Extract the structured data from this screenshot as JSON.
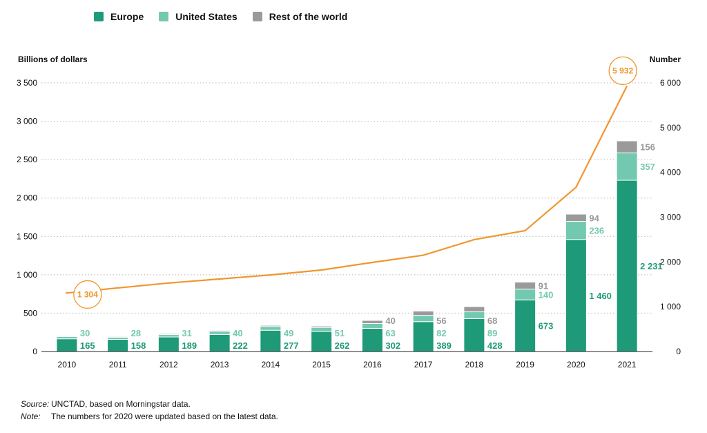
{
  "legend": [
    {
      "label": "Europe",
      "color": "#1e9a78"
    },
    {
      "label": "United States",
      "color": "#72c9b0"
    },
    {
      "label": "Rest of the world",
      "color": "#9a9a9a"
    }
  ],
  "footnotes": {
    "source_label": "Source:",
    "source_text": "UNCTAD, based on Morningstar data.",
    "note_label": "Note:",
    "note_text": "The numbers for 2020 were updated based on the latest data."
  },
  "chart_data": {
    "type": "bar",
    "stacked": true,
    "categories": [
      "2010",
      "2011",
      "2012",
      "2013",
      "2014",
      "2015",
      "2016",
      "2017",
      "2018",
      "2019",
      "2020",
      "2021"
    ],
    "series": [
      {
        "name": "Europe",
        "color": "#1e9a78",
        "values": [
          165,
          158,
          189,
          222,
          277,
          262,
          302,
          389,
          428,
          673,
          1460,
          2231
        ],
        "labels": [
          "165",
          "158",
          "189",
          "222",
          "277",
          "262",
          "302",
          "389",
          "428",
          "673",
          "1 460",
          "2 231"
        ]
      },
      {
        "name": "United States",
        "color": "#72c9b0",
        "values": [
          30,
          28,
          31,
          40,
          49,
          51,
          63,
          82,
          89,
          140,
          236,
          357
        ],
        "labels": [
          "30",
          "28",
          "31",
          "40",
          "49",
          "51",
          "63",
          "82",
          "89",
          "140",
          "236",
          "357"
        ]
      },
      {
        "name": "Rest of the world",
        "color": "#9a9a9a",
        "values": [
          10,
          10,
          12,
          13,
          14,
          18,
          40,
          56,
          68,
          91,
          94,
          156
        ],
        "labels": [
          "",
          "",
          "",
          "",
          "",
          "",
          "40",
          "56",
          "68",
          "91",
          "94",
          "156"
        ]
      }
    ],
    "line": {
      "color": "#f0962c",
      "values": [
        1304,
        1420,
        1530,
        1620,
        1710,
        1820,
        1990,
        2150,
        2500,
        2700,
        3670,
        5932
      ],
      "labels": [
        {
          "index": 0,
          "text": "1 304"
        },
        {
          "index": 11,
          "text": "5 932"
        }
      ]
    },
    "ylabel_left": "Billions of dollars",
    "ylabel_right": "Number",
    "ylim_left": [
      0,
      3500
    ],
    "ylim_right": [
      0,
      6000
    ],
    "yticks_left": [
      {
        "v": 0,
        "t": "0"
      },
      {
        "v": 500,
        "t": "500"
      },
      {
        "v": 1000,
        "t": "1 000"
      },
      {
        "v": 1500,
        "t": "1 500"
      },
      {
        "v": 2000,
        "t": "2 000"
      },
      {
        "v": 2500,
        "t": "2 500"
      },
      {
        "v": 3000,
        "t": "3 000"
      },
      {
        "v": 3500,
        "t": "3 500"
      }
    ],
    "yticks_right": [
      {
        "v": 0,
        "t": "0"
      },
      {
        "v": 1000,
        "t": "1 000"
      },
      {
        "v": 2000,
        "t": "2 000"
      },
      {
        "v": 3000,
        "t": "3 000"
      },
      {
        "v": 4000,
        "t": "4 000"
      },
      {
        "v": 5000,
        "t": "5 000"
      },
      {
        "v": 6000,
        "t": "6 000"
      }
    ],
    "grid": true
  }
}
